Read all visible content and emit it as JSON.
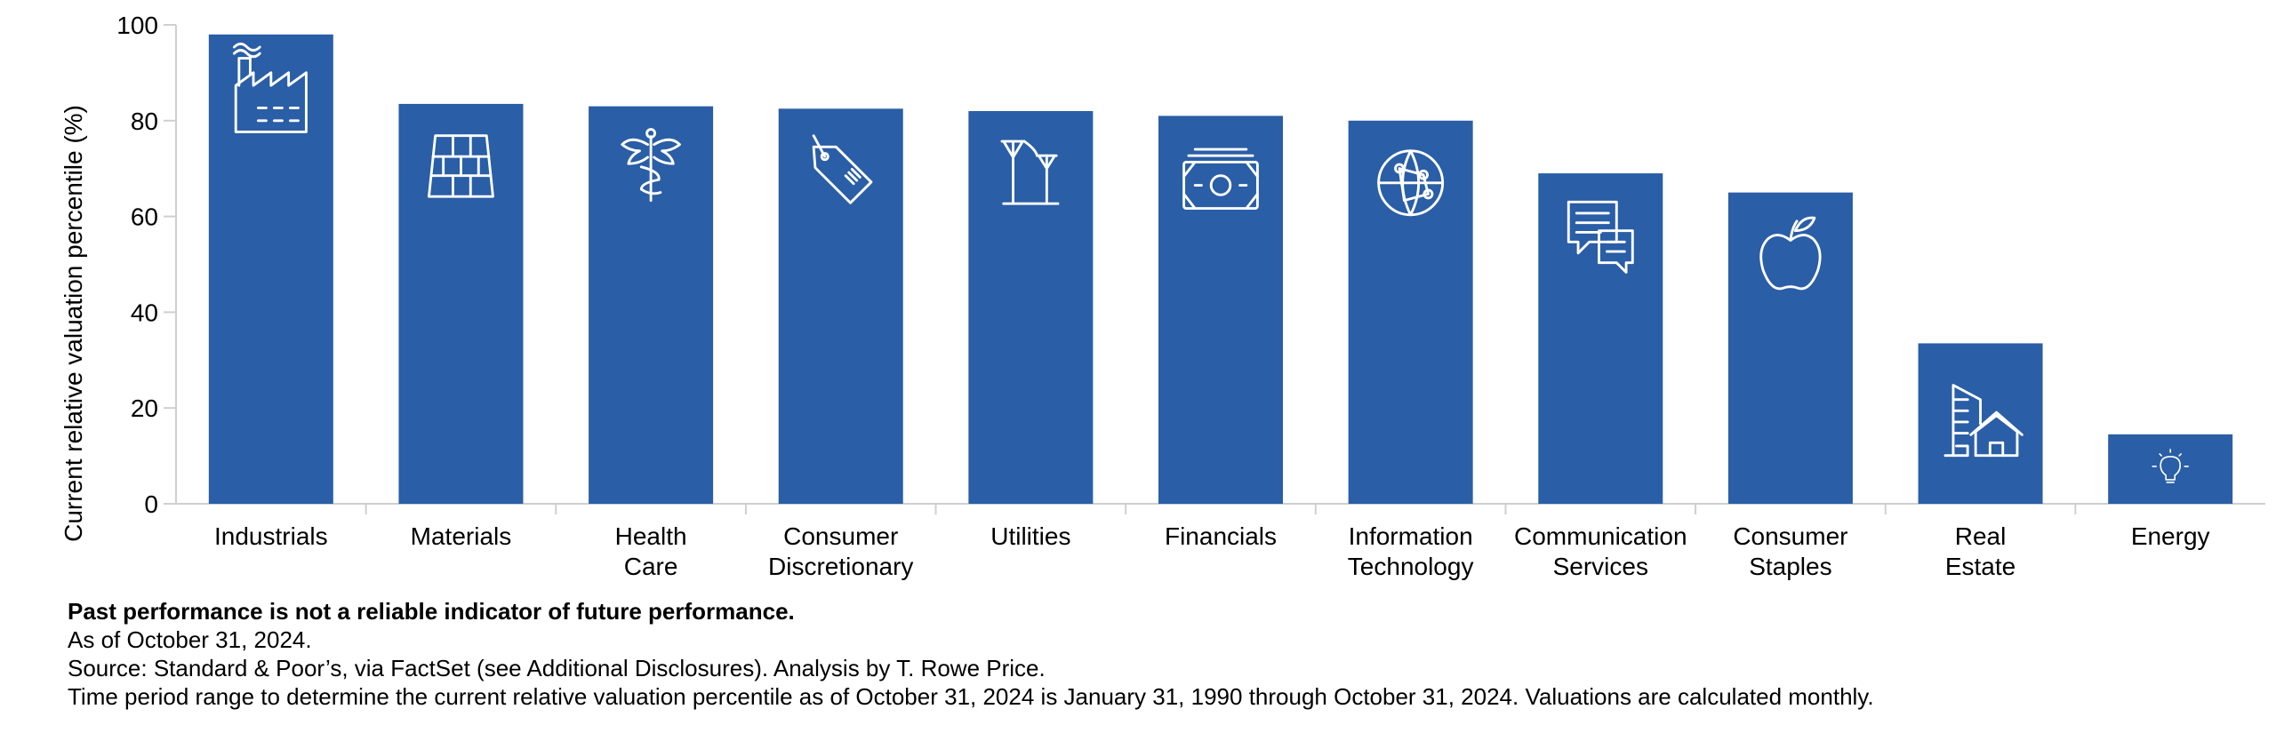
{
  "chart_data": {
    "type": "bar",
    "ylabel": "Current relative valuation percentile (%)",
    "xlabel": "",
    "ylim": [
      0,
      100
    ],
    "yticks": [
      0,
      20,
      40,
      60,
      80,
      100
    ],
    "bar_color": "#2a5ea6",
    "categories": [
      {
        "label": [
          "Industrials"
        ],
        "value": 98,
        "icon": "factory-icon"
      },
      {
        "label": [
          "Materials"
        ],
        "value": 83.5,
        "icon": "brick-wall-icon"
      },
      {
        "label": [
          "Health",
          "Care"
        ],
        "value": 83,
        "icon": "caduceus-icon"
      },
      {
        "label": [
          "Consumer",
          "Discretionary"
        ],
        "value": 82.5,
        "icon": "price-tag-icon"
      },
      {
        "label": [
          "Utilities"
        ],
        "value": 82,
        "icon": "power-line-icon"
      },
      {
        "label": [
          "Financials"
        ],
        "value": 81,
        "icon": "money-stack-icon"
      },
      {
        "label": [
          "Information",
          "Technology"
        ],
        "value": 80,
        "icon": "network-globe-icon"
      },
      {
        "label": [
          "Communication",
          "Services"
        ],
        "value": 69,
        "icon": "chat-bubbles-icon"
      },
      {
        "label": [
          "Consumer",
          "Staples"
        ],
        "value": 65,
        "icon": "apple-icon"
      },
      {
        "label": [
          "Real",
          "Estate"
        ],
        "value": 33.5,
        "icon": "buildings-icon"
      },
      {
        "label": [
          "Energy"
        ],
        "value": 14.5,
        "icon": "light-bulb-icon"
      }
    ]
  },
  "notes": {
    "disclaimer": "Past performance is not a reliable indicator of future performance.",
    "as_of": "As of October 31, 2024.",
    "source": "Source: Standard & Poor’s, via FactSet (see Additional Disclosures). Analysis by T. Rowe Price.",
    "period": "Time period range to determine the current relative valuation percentile as of October 31, 2024 is January 31, 1990 through October 31, 2024. Valuations are calculated monthly."
  }
}
